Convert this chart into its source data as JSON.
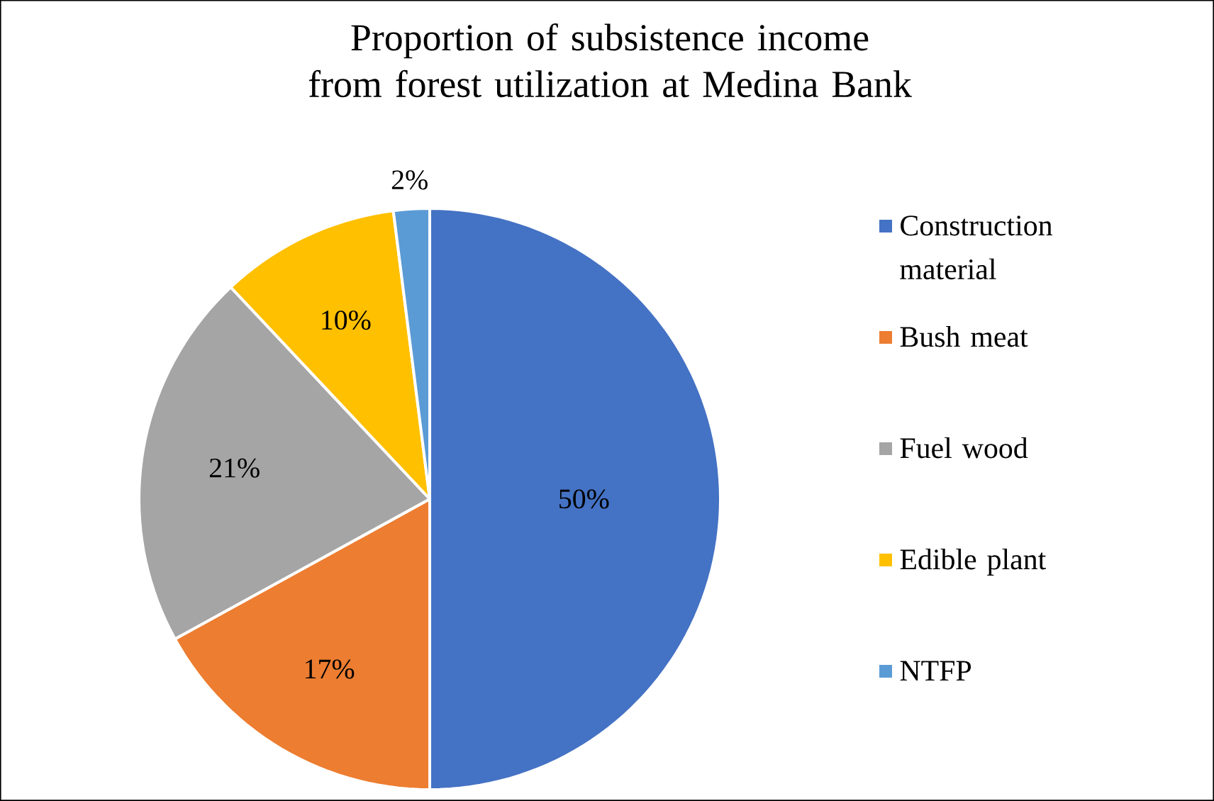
{
  "chart_data": {
    "type": "pie",
    "title": "Proportion of subsistence income from forest utilization at Medina Bank",
    "categories": [
      "Construction material",
      "Bush meat",
      "Fuel wood",
      "Edible plant",
      "NTFP"
    ],
    "values": [
      50,
      17,
      21,
      10,
      2
    ],
    "colors": [
      "#4472c4",
      "#ed7d31",
      "#a5a5a5",
      "#ffc000",
      "#5b9bd5"
    ],
    "value_labels": [
      "50%",
      "17%",
      "21%",
      "10%",
      "2%"
    ],
    "legend": "right"
  }
}
